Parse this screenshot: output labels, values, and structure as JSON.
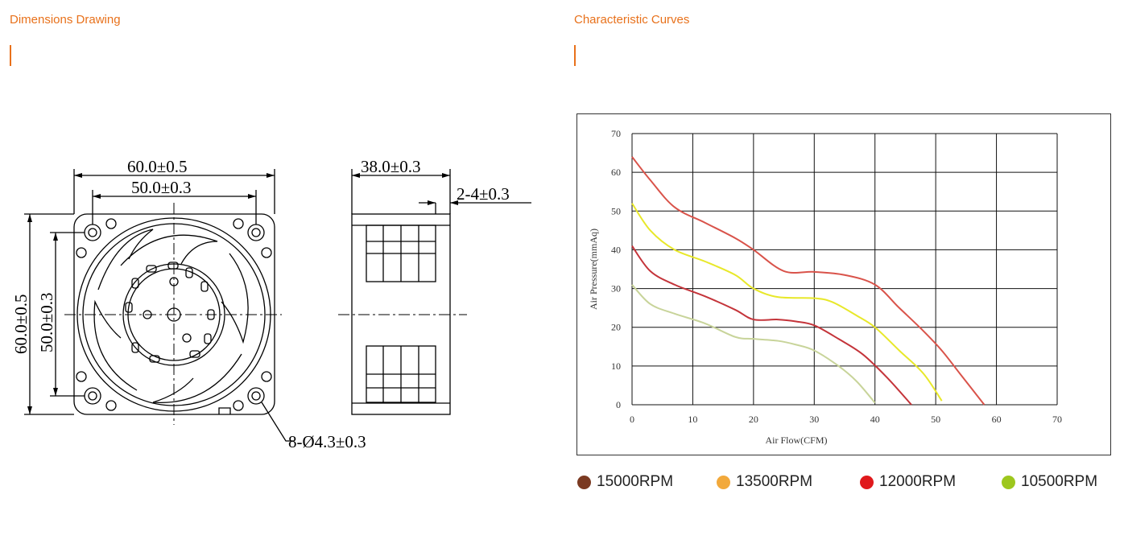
{
  "left_section": {
    "title": "Dimensions Drawing",
    "dimensions": {
      "overall_width": "60.0±0.5",
      "hole_spacing_width": "50.0±0.3",
      "overall_height": "60.0±0.5",
      "hole_spacing_height": "50.0±0.3",
      "depth": "38.0±0.3",
      "flange": "2-4±0.3",
      "holes": "8-Ø4.3±0.3"
    }
  },
  "right_section": {
    "title": "Characteristic Curves"
  },
  "colors": {
    "accent": "#e8711b"
  },
  "chart_data": {
    "type": "line",
    "xlabel": "Air Flow(CFM)",
    "ylabel": "Air Pressure(mmAq)",
    "xlim": [
      0,
      70
    ],
    "ylim": [
      0,
      70
    ],
    "xticks": [
      0,
      10,
      20,
      30,
      40,
      50,
      60,
      70
    ],
    "yticks": [
      0,
      10,
      20,
      30,
      40,
      50,
      60,
      70
    ],
    "grid": true,
    "legend_position": "bottom",
    "series": [
      {
        "name": "15000RPM",
        "color": "#d9534a",
        "legend_color": "#7b3a22",
        "points": [
          [
            0,
            64
          ],
          [
            3,
            58
          ],
          [
            7,
            51
          ],
          [
            12,
            47
          ],
          [
            17,
            43
          ],
          [
            20,
            40
          ],
          [
            25,
            34.5
          ],
          [
            30,
            34.3
          ],
          [
            35,
            33.5
          ],
          [
            40,
            31
          ],
          [
            44,
            25
          ],
          [
            48,
            19
          ],
          [
            51,
            14
          ],
          [
            54,
            8
          ],
          [
            58,
            0
          ]
        ]
      },
      {
        "name": "13500RPM",
        "color": "#e8e82a",
        "legend_color": "#f2a93b",
        "points": [
          [
            0,
            52
          ],
          [
            3,
            45
          ],
          [
            7,
            40
          ],
          [
            12,
            37
          ],
          [
            17,
            33.5
          ],
          [
            20,
            30
          ],
          [
            24,
            27.8
          ],
          [
            30,
            27.5
          ],
          [
            33,
            26.5
          ],
          [
            37,
            23
          ],
          [
            40,
            20
          ],
          [
            44,
            14
          ],
          [
            48,
            8
          ],
          [
            51,
            1
          ]
        ]
      },
      {
        "name": "12000RPM",
        "color": "#c4343a",
        "legend_color": "#e0191c",
        "points": [
          [
            0,
            41
          ],
          [
            3,
            34.5
          ],
          [
            7,
            31
          ],
          [
            12,
            28
          ],
          [
            17,
            24.5
          ],
          [
            20,
            22
          ],
          [
            24,
            22
          ],
          [
            27,
            21.5
          ],
          [
            30,
            20.5
          ],
          [
            34,
            17
          ],
          [
            38,
            13
          ],
          [
            42,
            7
          ],
          [
            46,
            0
          ]
        ]
      },
      {
        "name": "10500RPM",
        "color": "#c8d49a",
        "legend_color": "#9dc71e",
        "points": [
          [
            0,
            31
          ],
          [
            3,
            26
          ],
          [
            7,
            23.5
          ],
          [
            12,
            21
          ],
          [
            17,
            17.5
          ],
          [
            20,
            17
          ],
          [
            24,
            16.5
          ],
          [
            27,
            15.5
          ],
          [
            30,
            14
          ],
          [
            34,
            10
          ],
          [
            37,
            6
          ],
          [
            40,
            0.5
          ]
        ]
      }
    ]
  }
}
